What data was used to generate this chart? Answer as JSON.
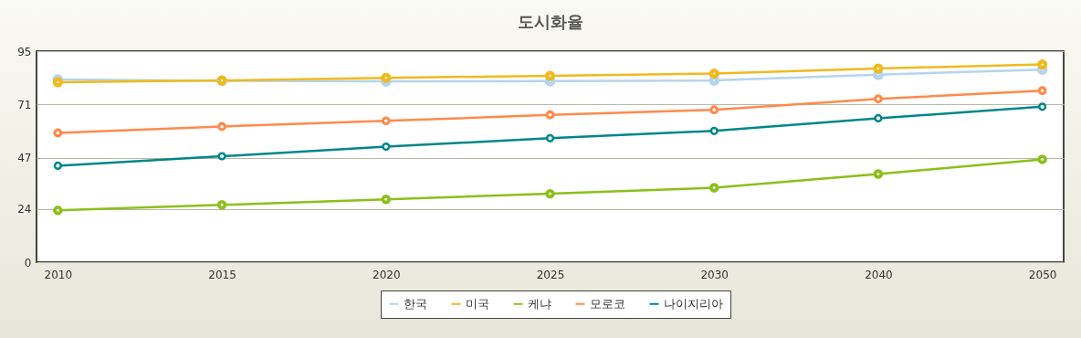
{
  "chart_data": {
    "type": "line",
    "title": "도시화율",
    "categories": [
      "2010",
      "2015",
      "2020",
      "2025",
      "2030",
      "2040",
      "2050"
    ],
    "series": [
      {
        "name": "한국",
        "color": "#b4d4f0",
        "values": [
          82.2,
          81.6,
          81.4,
          81.5,
          81.8,
          84.4,
          86.7
        ]
      },
      {
        "name": "미국",
        "color": "#f0b91e",
        "values": [
          81.0,
          81.8,
          83.0,
          83.9,
          84.9,
          87.2,
          89.0
        ]
      },
      {
        "name": "케냐",
        "color": "#8cbf1a",
        "values": [
          23.3,
          25.8,
          28.3,
          30.8,
          33.5,
          39.7,
          46.3
        ]
      },
      {
        "name": "모로코",
        "color": "#ff8a4c",
        "values": [
          58.2,
          61.1,
          63.6,
          66.3,
          68.6,
          73.5,
          77.2
        ]
      },
      {
        "name": "나이지리아",
        "color": "#00868a",
        "values": [
          43.4,
          47.7,
          52.0,
          55.8,
          59.1,
          64.8,
          70.0
        ]
      }
    ],
    "ylim": [
      0,
      95
    ],
    "yticks": [
      0,
      24,
      47,
      71,
      95
    ],
    "grid": "y",
    "legend": "bottom",
    "marker": "circle",
    "line_style": "solid"
  }
}
